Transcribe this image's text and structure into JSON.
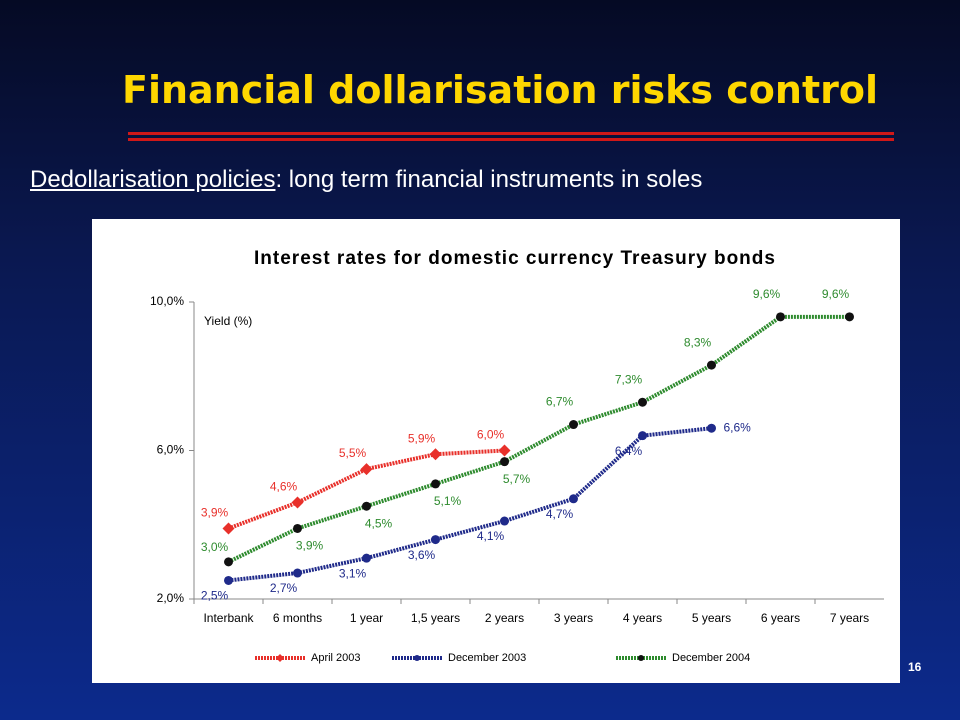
{
  "slide": {
    "title": "Financial dollarisation risks control",
    "subtitle_underlined": "Dedollarisation policies",
    "subtitle_rest": ": long term financial instruments in soles",
    "page_number": "16"
  },
  "chart_data": {
    "type": "line",
    "title": "Interest rates for domestic currency Treasury bonds",
    "y_label": "Yield (%)",
    "categories": [
      "Interbank",
      "6 months",
      "1 year",
      "1,5 years",
      "2 years",
      "3 years",
      "4 years",
      "5 years",
      "6 years",
      "7 years"
    ],
    "ylim": [
      2,
      10
    ],
    "yticks": [
      {
        "value": 2,
        "label": "2,0%"
      },
      {
        "value": 6,
        "label": "6,0%"
      },
      {
        "value": 10,
        "label": "10,0%"
      }
    ],
    "legend": "bottom",
    "series": [
      {
        "name": "April 2003",
        "color": "#e8302a",
        "marker": "diamond",
        "marker_color": "#e8302a",
        "values": [
          3.9,
          4.6,
          5.5,
          5.9,
          6.0,
          null,
          null,
          null,
          null,
          null
        ],
        "value_labels": [
          "3,9%",
          "4,6%",
          "5,5%",
          "5,9%",
          "6,0%",
          null,
          null,
          null,
          null,
          null
        ]
      },
      {
        "name": "December 2003",
        "color": "#1f2a8a",
        "marker": "circle",
        "marker_color": "#1f2a8a",
        "values": [
          2.5,
          2.7,
          3.1,
          3.6,
          4.1,
          4.7,
          6.4,
          6.6,
          null,
          null
        ],
        "value_labels": [
          "2,5%",
          "2,7%",
          "3,1%",
          "3,6%",
          "4,1%",
          "4,7%",
          "6,4%",
          "6,6%",
          null,
          null
        ]
      },
      {
        "name": "December 2004",
        "color": "#2e8b2e",
        "marker": "circle",
        "marker_color": "#111111",
        "values": [
          3.0,
          3.9,
          4.5,
          5.1,
          5.7,
          6.7,
          7.3,
          8.3,
          9.6,
          9.6
        ],
        "value_labels": [
          "3,0%",
          "3,9%",
          "4,5%",
          "5,1%",
          "5,7%",
          "6,7%",
          "7,3%",
          "8,3%",
          "9,6%",
          "9,6%"
        ]
      }
    ]
  }
}
